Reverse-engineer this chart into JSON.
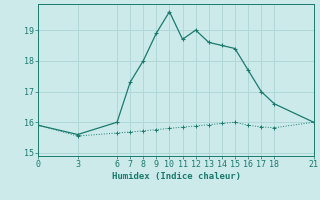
{
  "xlabel": "Humidex (Indice chaleur)",
  "bg_color": "#cceaea",
  "grid_color": "#b0d8d8",
  "line_color": "#1a7a6e",
  "line1_x": [
    0,
    3,
    6,
    7,
    8,
    9,
    10,
    11,
    12,
    13,
    14,
    15,
    16,
    17,
    18,
    21
  ],
  "line1_y": [
    15.9,
    15.6,
    16.0,
    17.3,
    18.0,
    18.9,
    19.6,
    18.7,
    19.0,
    18.6,
    18.5,
    18.4,
    17.7,
    17.0,
    16.6,
    16.0
  ],
  "line2_x": [
    0,
    3,
    6,
    7,
    8,
    9,
    10,
    11,
    12,
    13,
    14,
    15,
    16,
    17,
    18,
    21
  ],
  "line2_y": [
    15.9,
    15.55,
    15.65,
    15.68,
    15.72,
    15.76,
    15.8,
    15.84,
    15.88,
    15.92,
    15.96,
    16.0,
    15.9,
    15.85,
    15.82,
    16.0
  ],
  "xticks": [
    0,
    3,
    6,
    7,
    8,
    9,
    10,
    11,
    12,
    13,
    14,
    15,
    16,
    17,
    18,
    21
  ],
  "yticks": [
    15,
    16,
    17,
    18,
    19
  ],
  "xlim": [
    0,
    21
  ],
  "ylim": [
    14.9,
    19.85
  ]
}
